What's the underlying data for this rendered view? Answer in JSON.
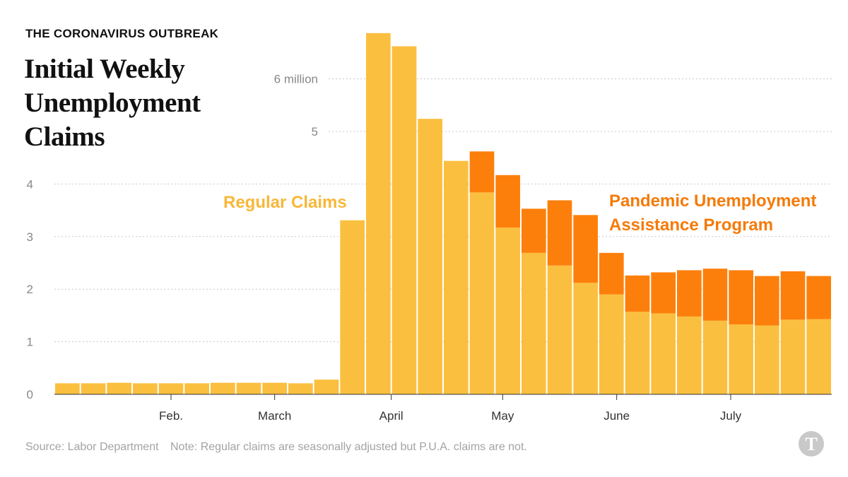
{
  "kicker": "THE CORONAVIRUS OUTBREAK",
  "title": "Initial Weekly Unemployment Claims",
  "source": "Source: Labor Department",
  "note": "Note: Regular claims are seasonally adjusted but P.U.A. claims are not.",
  "logo_text": "T",
  "colors": {
    "regular": "#fbbf3f",
    "pua": "#fd7f0b",
    "grid": "#c8c8c8",
    "axis_text": "#888888",
    "regular_label": "#f8b739",
    "pua_label": "#f57a08"
  },
  "chart_data": {
    "type": "bar",
    "stacked": true,
    "ylabel": "",
    "xlabel": "",
    "ylim": [
      0,
      6.8
    ],
    "y_ticks": [
      {
        "value": 0,
        "label": "0"
      },
      {
        "value": 1,
        "label": "1"
      },
      {
        "value": 2,
        "label": "2"
      },
      {
        "value": 3,
        "label": "3"
      },
      {
        "value": 4,
        "label": "4"
      },
      {
        "value": 5,
        "label": "5"
      },
      {
        "value": 6,
        "label": "6 million"
      }
    ],
    "x_ticks": [
      {
        "label": "Feb.",
        "week": 4.5
      },
      {
        "label": "March",
        "week": 8.5
      },
      {
        "label": "April",
        "week": 13.0
      },
      {
        "label": "May",
        "week": 17.3
      },
      {
        "label": "June",
        "week": 21.7
      },
      {
        "label": "July",
        "week": 26.1
      }
    ],
    "series": [
      {
        "name": "Regular Claims",
        "values": [
          0.21,
          0.21,
          0.22,
          0.21,
          0.21,
          0.21,
          0.22,
          0.22,
          0.22,
          0.21,
          0.28,
          3.31,
          6.87,
          6.62,
          5.24,
          4.44,
          3.84,
          3.17,
          2.69,
          2.45,
          2.12,
          1.9,
          1.57,
          1.54,
          1.48,
          1.4,
          1.33,
          1.31,
          1.42,
          1.43
        ]
      },
      {
        "name": "Pandemic Unemployment Assistance Program",
        "values": [
          0,
          0,
          0,
          0,
          0,
          0,
          0,
          0,
          0,
          0,
          0,
          0,
          0,
          0,
          0,
          0,
          0.78,
          1.0,
          0.84,
          1.24,
          1.29,
          0.79,
          0.69,
          0.78,
          0.88,
          0.99,
          1.03,
          0.94,
          0.92,
          0.82
        ]
      }
    ],
    "annotations": [
      {
        "text": "Regular Claims",
        "series": 0
      },
      {
        "text": "Pandemic Unemployment",
        "series": 1
      },
      {
        "text": "Assistance Program",
        "series": 1
      }
    ]
  }
}
